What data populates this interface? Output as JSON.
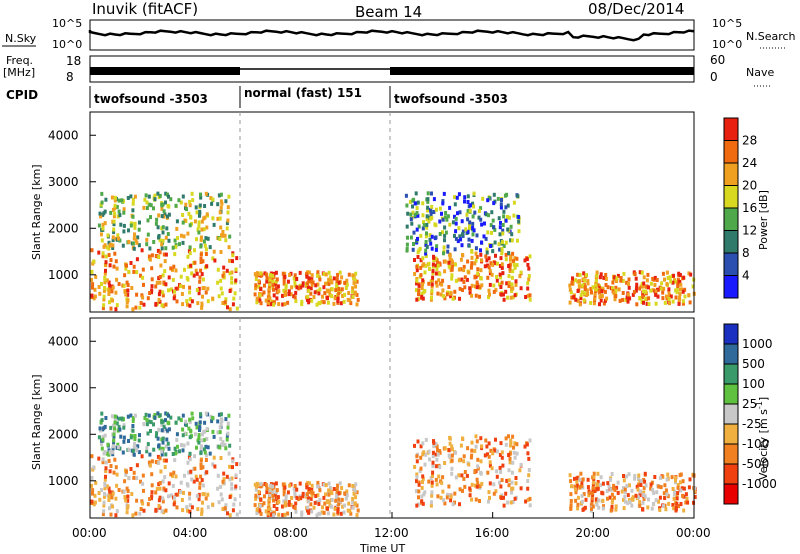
{
  "header": {
    "station": "Inuvik (fitACF)",
    "beam": "Beam 14",
    "date": "08/Dec/2014"
  },
  "noise_panel": {
    "left_label": "N.Sky",
    "left_ticks": [
      "10^5",
      "10^0"
    ],
    "right_label": "N.Search",
    "right_ticks": [
      "10^5",
      "10^0"
    ]
  },
  "freq_panel": {
    "left_label_top": "Freq.",
    "left_label_unit": "[MHz]",
    "left_ticks": [
      "18",
      "8"
    ],
    "right_label": "Nave",
    "right_ticks": [
      "60",
      "0"
    ]
  },
  "cpid": {
    "label": "CPID",
    "segments": [
      {
        "text": "twofsound -3503",
        "start_h": 0,
        "end_h": 6
      },
      {
        "text": "normal (fast) 151",
        "start_h": 6,
        "end_h": 12
      },
      {
        "text": "twofsound -3503",
        "start_h": 12,
        "end_h": 24
      }
    ]
  },
  "x_axis": {
    "ticks": [
      "00:00",
      "04:00",
      "08:00",
      "12:00",
      "16:00",
      "20:00",
      "00:00"
    ],
    "title": "Time UT"
  },
  "chart_data": [
    {
      "type": "heatmap",
      "title": "",
      "ylabel": "Slant Range [km]",
      "yticks": [
        "1000",
        "2000",
        "3000",
        "4000"
      ],
      "ylim": [
        200,
        4500
      ],
      "xlim_hours": [
        0,
        24
      ],
      "colorbar": {
        "label": "Power [dB]",
        "ticks": [
          "4",
          "8",
          "12",
          "16",
          "20",
          "24",
          "28"
        ],
        "colors": [
          "#1a1aff",
          "#2b4fb0",
          "#2f7a6a",
          "#4fa84a",
          "#d8d820",
          "#f0a020",
          "#f06a10",
          "#e82010"
        ]
      },
      "regions": [
        {
          "t0": 0.0,
          "t1": 5.8,
          "r0": 300,
          "r1": 1600,
          "level": "high"
        },
        {
          "t0": 0.3,
          "t1": 5.5,
          "r0": 1600,
          "r1": 2800,
          "level": "mid"
        },
        {
          "t0": 6.5,
          "t1": 10.6,
          "r0": 400,
          "r1": 1100,
          "level": "high"
        },
        {
          "t0": 12.8,
          "t1": 17.5,
          "r0": 500,
          "r1": 1500,
          "level": "high"
        },
        {
          "t0": 12.5,
          "t1": 17.0,
          "r0": 1500,
          "r1": 2800,
          "level": "low"
        },
        {
          "t0": 19.0,
          "t1": 24.0,
          "r0": 400,
          "r1": 1100,
          "level": "high"
        }
      ]
    },
    {
      "type": "heatmap",
      "title": "",
      "ylabel": "Slant Range [km]",
      "yticks": [
        "1000",
        "2000",
        "3000",
        "4000"
      ],
      "ylim": [
        200,
        4500
      ],
      "xlim_hours": [
        0,
        24
      ],
      "colorbar": {
        "label": "Velocity [m s^-1]",
        "ticks": [
          "1000",
          "500",
          "100",
          "25",
          "-25",
          "-100",
          "-500",
          "-1000"
        ],
        "colors": [
          "#1a30c0",
          "#2f6a9a",
          "#3a9a6a",
          "#60c040",
          "#c8c8c8",
          "#f0b040",
          "#f08020",
          "#f04010",
          "#e80000"
        ]
      },
      "regions": [
        {
          "t0": 0.0,
          "t1": 5.8,
          "r0": 300,
          "r1": 1600,
          "level": "negative"
        },
        {
          "t0": 0.3,
          "t1": 5.5,
          "r0": 1600,
          "r1": 2500,
          "level": "positive"
        },
        {
          "t0": 6.5,
          "t1": 10.6,
          "r0": 300,
          "r1": 1000,
          "level": "negative"
        },
        {
          "t0": 12.8,
          "t1": 17.5,
          "r0": 500,
          "r1": 2000,
          "level": "negative"
        },
        {
          "t0": 19.0,
          "t1": 24.0,
          "r0": 400,
          "r1": 1200,
          "level": "negative"
        }
      ]
    }
  ]
}
